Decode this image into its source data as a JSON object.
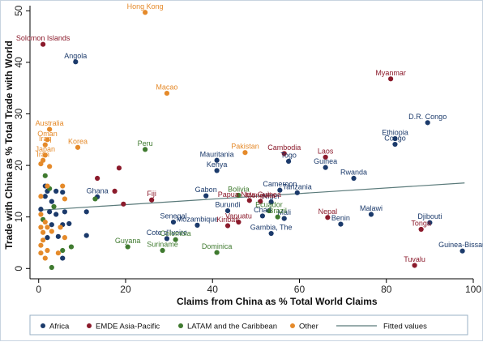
{
  "chart_data": {
    "type": "scatter",
    "title": "",
    "xlabel": "Claims from China as % Total World Claims",
    "ylabel": "Trade with China as % Total Trade with World",
    "xlim": [
      -2,
      100
    ],
    "ylim": [
      -2,
      51
    ],
    "x_ticks": [
      0,
      20,
      40,
      60,
      80,
      100
    ],
    "y_ticks": [
      0,
      10,
      20,
      30,
      40,
      50
    ],
    "grid": false,
    "legend_position": "bottom",
    "series": [
      {
        "name": "Africa",
        "color": "#1b3a6b",
        "points": [
          {
            "x": 8.5,
            "y": 40.1,
            "label": "Angola"
          },
          {
            "x": 89.5,
            "y": 28.3,
            "label": "D.R. Congo"
          },
          {
            "x": 82.0,
            "y": 25.2,
            "label": "Ethiopia"
          },
          {
            "x": 82.0,
            "y": 24.1,
            "label": "Congo"
          },
          {
            "x": 41.0,
            "y": 21.0,
            "label": "Mauritania"
          },
          {
            "x": 41.0,
            "y": 19.0,
            "label": "Kenya"
          },
          {
            "x": 57.5,
            "y": 20.8,
            "label": "Togo"
          },
          {
            "x": 66.0,
            "y": 19.6,
            "label": "Guinea"
          },
          {
            "x": 72.5,
            "y": 17.5,
            "label": "Rwanda"
          },
          {
            "x": 38.5,
            "y": 14.1,
            "label": "Gabon"
          },
          {
            "x": 59.5,
            "y": 14.7,
            "label": "Tanzania"
          },
          {
            "x": 55.5,
            "y": 15.2,
            "label": "Cameroon"
          },
          {
            "x": 53.5,
            "y": 12.9,
            "label": "Niger"
          },
          {
            "x": 43.5,
            "y": 11.2,
            "label": "Burundi"
          },
          {
            "x": 76.5,
            "y": 10.5,
            "label": "Malawi"
          },
          {
            "x": 51.5,
            "y": 10.2,
            "label": "Chad"
          },
          {
            "x": 56.5,
            "y": 9.7,
            "label": "Mali"
          },
          {
            "x": 69.5,
            "y": 8.6,
            "label": "Benin"
          },
          {
            "x": 90.0,
            "y": 8.9,
            "label": "Djibouti"
          },
          {
            "x": 97.5,
            "y": 3.4,
            "label": "Guinea-Bissau"
          },
          {
            "x": 31.0,
            "y": 9.0,
            "label": "Senegal"
          },
          {
            "x": 36.5,
            "y": 8.4,
            "label": "Mozambique"
          },
          {
            "x": 53.5,
            "y": 6.8,
            "label": "Gambia, The"
          },
          {
            "x": 29.5,
            "y": 5.8,
            "label": "Cote d'Ivoire"
          },
          {
            "x": 13.5,
            "y": 13.9,
            "label": "Ghana"
          },
          {
            "x": 0.5,
            "y": 11.5,
            "label": ""
          },
          {
            "x": 1.5,
            "y": 16.0,
            "label": ""
          },
          {
            "x": 2.0,
            "y": 15.0,
            "label": ""
          },
          {
            "x": 3.0,
            "y": 13.0,
            "label": ""
          },
          {
            "x": 4.0,
            "y": 15.0,
            "label": ""
          },
          {
            "x": 5.5,
            "y": 14.8,
            "label": ""
          },
          {
            "x": 2.5,
            "y": 11.0,
            "label": ""
          },
          {
            "x": 4.0,
            "y": 10.5,
            "label": ""
          },
          {
            "x": 6.0,
            "y": 11.0,
            "label": ""
          },
          {
            "x": 3.0,
            "y": 8.5,
            "label": ""
          },
          {
            "x": 5.5,
            "y": 8.5,
            "label": ""
          },
          {
            "x": 7.0,
            "y": 8.7,
            "label": ""
          },
          {
            "x": 2.0,
            "y": 6.0,
            "label": ""
          },
          {
            "x": 4.5,
            "y": 6.2,
            "label": ""
          },
          {
            "x": 5.5,
            "y": 2.0,
            "label": ""
          },
          {
            "x": 11.0,
            "y": 11.0,
            "label": ""
          },
          {
            "x": 11.0,
            "y": 6.4,
            "label": ""
          },
          {
            "x": 1.5,
            "y": 14.0,
            "label": ""
          }
        ]
      },
      {
        "name": "EMDE Asia-Pacific",
        "color": "#8b1a2b",
        "points": [
          {
            "x": 1.0,
            "y": 43.5,
            "label": "Solomon Islands"
          },
          {
            "x": 81.0,
            "y": 36.8,
            "label": "Myanmar"
          },
          {
            "x": 56.5,
            "y": 22.3,
            "label": "Cambodia"
          },
          {
            "x": 66.0,
            "y": 21.6,
            "label": "Laos"
          },
          {
            "x": 48.5,
            "y": 13.2,
            "label": "Papua New Guinea"
          },
          {
            "x": 51.0,
            "y": 13.0,
            "label": "Mongolia"
          },
          {
            "x": 26.0,
            "y": 13.3,
            "label": "Fiji"
          },
          {
            "x": 46.0,
            "y": 9.0,
            "label": "Vanuatu"
          },
          {
            "x": 43.5,
            "y": 8.3,
            "label": "Kiribati"
          },
          {
            "x": 66.5,
            "y": 9.9,
            "label": "Nepal"
          },
          {
            "x": 88.0,
            "y": 7.6,
            "label": "Tonga"
          },
          {
            "x": 86.5,
            "y": 0.6,
            "label": "Tuvalu"
          },
          {
            "x": 13.5,
            "y": 17.5,
            "label": ""
          },
          {
            "x": 18.5,
            "y": 19.5,
            "label": ""
          },
          {
            "x": 17.5,
            "y": 15.0,
            "label": ""
          },
          {
            "x": 19.5,
            "y": 12.5,
            "label": ""
          }
        ]
      },
      {
        "name": "LATAM and the Caribbean",
        "color": "#3f7a2f",
        "points": [
          {
            "x": 24.5,
            "y": 23.1,
            "label": "Peru"
          },
          {
            "x": 46.0,
            "y": 14.2,
            "label": "Bolivia"
          },
          {
            "x": 53.0,
            "y": 11.2,
            "label": "Ecuador"
          },
          {
            "x": 55.0,
            "y": 10.0,
            "label": "Brazil"
          },
          {
            "x": 31.5,
            "y": 5.6,
            "label": "Colombia"
          },
          {
            "x": 20.5,
            "y": 4.2,
            "label": "Guyana"
          },
          {
            "x": 28.5,
            "y": 3.5,
            "label": "Suriname"
          },
          {
            "x": 41.0,
            "y": 3.1,
            "label": "Dominica"
          },
          {
            "x": 1.5,
            "y": 18.0,
            "label": ""
          },
          {
            "x": 2.5,
            "y": 15.5,
            "label": ""
          },
          {
            "x": 3.5,
            "y": 12.0,
            "label": ""
          },
          {
            "x": 13.0,
            "y": 13.5,
            "label": ""
          },
          {
            "x": 1.0,
            "y": 9.5,
            "label": ""
          },
          {
            "x": 3.0,
            "y": 0.2,
            "label": ""
          },
          {
            "x": 5.5,
            "y": 3.5,
            "label": ""
          },
          {
            "x": 7.5,
            "y": 4.2,
            "label": ""
          }
        ]
      },
      {
        "name": "Other",
        "color": "#e58a2a",
        "points": [
          {
            "x": 24.5,
            "y": 49.7,
            "label": "Hong Kong"
          },
          {
            "x": 29.5,
            "y": 34.0,
            "label": "Macao"
          },
          {
            "x": 2.5,
            "y": 27.0,
            "label": "Australia"
          },
          {
            "x": 2.0,
            "y": 25.0,
            "label": "Oman"
          },
          {
            "x": 1.5,
            "y": 24.0,
            "label": "Iraq"
          },
          {
            "x": 9.0,
            "y": 23.5,
            "label": "Korea"
          },
          {
            "x": 1.5,
            "y": 22.0,
            "label": "Japan"
          },
          {
            "x": 1.0,
            "y": 21.0,
            "label": "Iran"
          },
          {
            "x": 47.5,
            "y": 22.5,
            "label": "Pakistan"
          },
          {
            "x": 0.5,
            "y": 20.3,
            "label": ""
          },
          {
            "x": 2.5,
            "y": 19.8,
            "label": ""
          },
          {
            "x": 0.5,
            "y": 14.0,
            "label": ""
          },
          {
            "x": 2.0,
            "y": 16.0,
            "label": ""
          },
          {
            "x": 5.5,
            "y": 16.0,
            "label": ""
          },
          {
            "x": 6.0,
            "y": 13.5,
            "label": ""
          },
          {
            "x": 0.5,
            "y": 10.5,
            "label": ""
          },
          {
            "x": 1.5,
            "y": 9.0,
            "label": ""
          },
          {
            "x": 2.0,
            "y": 8.0,
            "label": ""
          },
          {
            "x": 3.0,
            "y": 7.2,
            "label": ""
          },
          {
            "x": 1.0,
            "y": 7.0,
            "label": ""
          },
          {
            "x": 1.0,
            "y": 5.5,
            "label": ""
          },
          {
            "x": 0.5,
            "y": 4.5,
            "label": ""
          },
          {
            "x": 2.0,
            "y": 3.5,
            "label": ""
          },
          {
            "x": 0.5,
            "y": 3.0,
            "label": ""
          },
          {
            "x": 1.5,
            "y": 2.0,
            "label": ""
          },
          {
            "x": 4.5,
            "y": 3.0,
            "label": ""
          },
          {
            "x": 5.0,
            "y": 8.0,
            "label": ""
          },
          {
            "x": 6.0,
            "y": 6.0,
            "label": ""
          },
          {
            "x": 0.5,
            "y": 8.0,
            "label": ""
          }
        ]
      }
    ],
    "fitted_line": {
      "name": "Fitted values",
      "color": "#5a7a7a",
      "x": [
        0,
        98
      ],
      "y": [
        11.3,
        16.6
      ]
    }
  }
}
